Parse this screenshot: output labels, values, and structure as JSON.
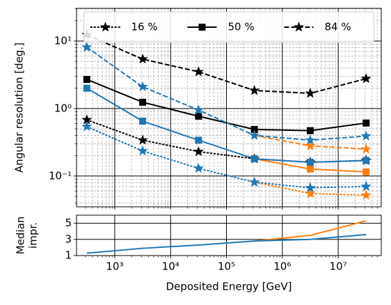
{
  "chart_data": [
    {
      "type": "line",
      "ylabel": "Angular resolution [deg.]",
      "xscale": "log",
      "yscale": "log",
      "xlim": [
        207,
        59000000
      ],
      "ylim": [
        0.035,
        30.5
      ],
      "xticks": [
        1000,
        10000,
        100000,
        1000000,
        10000000
      ],
      "yticks": [
        {
          "value": 0.1,
          "label": "10⁻¹"
        },
        {
          "value": 1,
          "label": "10⁰"
        },
        {
          "value": 10,
          "label": "10¹"
        }
      ],
      "grid": true,
      "minor_grid": true,
      "legend_loc": "upper center",
      "x": [
        316.2,
        3162,
        31623,
        316228,
        3162278,
        31622777
      ],
      "series": [
        {
          "name": "16 %",
          "color": "#000000",
          "linestyle": "dotted",
          "marker": "star",
          "values": [
            0.68,
            0.34,
            0.23,
            0.18,
            0.16,
            0.17
          ]
        },
        {
          "name": "50 %",
          "color": "#000000",
          "linestyle": "solid",
          "marker": "square",
          "values": [
            2.7,
            1.24,
            0.77,
            0.49,
            0.47,
            0.61
          ]
        },
        {
          "name": "84 %",
          "color": "#000000",
          "linestyle": "dashed",
          "marker": "star",
          "values": [
            12.4,
            5.4,
            3.5,
            1.85,
            1.68,
            2.77
          ]
        },
        {
          "color": "#ff7f0e",
          "linestyle": "dotted",
          "marker": "star",
          "values": [
            null,
            null,
            null,
            0.081,
            0.055,
            0.052
          ]
        },
        {
          "color": "#ff7f0e",
          "linestyle": "solid",
          "marker": "square",
          "values": [
            null,
            null,
            null,
            0.18,
            0.127,
            0.115
          ]
        },
        {
          "color": "#ff7f0e",
          "linestyle": "dashed",
          "marker": "star",
          "values": [
            null,
            null,
            null,
            0.4,
            0.28,
            0.25
          ]
        },
        {
          "color": "#1f77b4",
          "linestyle": "dotted",
          "marker": "star",
          "values": [
            0.54,
            0.235,
            0.13,
            0.081,
            0.067,
            0.07
          ]
        },
        {
          "color": "#1f77b4",
          "linestyle": "solid",
          "marker": "square",
          "values": [
            2.0,
            0.65,
            0.34,
            0.18,
            0.16,
            0.17
          ]
        },
        {
          "color": "#1f77b4",
          "linestyle": "dashed",
          "marker": "star",
          "values": [
            8.1,
            2.1,
            0.95,
            0.4,
            0.34,
            0.39
          ]
        }
      ]
    },
    {
      "type": "line",
      "ylabel": [
        "Median",
        "impr."
      ],
      "xlabel": "Deposited Energy [GeV]",
      "xscale": "log",
      "yscale": "linear",
      "xlim": [
        207,
        59000000
      ],
      "ylim": [
        1,
        6
      ],
      "xticks": [
        {
          "value": 1000,
          "label": "10³"
        },
        {
          "value": 10000,
          "label": "10⁴"
        },
        {
          "value": 100000,
          "label": "10⁵"
        },
        {
          "value": 1000000,
          "label": "10⁶"
        },
        {
          "value": 10000000,
          "label": "10⁷"
        }
      ],
      "yticks": [
        1,
        3,
        5
      ],
      "grid": true,
      "x": [
        316.2,
        3162,
        31623,
        316228,
        3162278,
        31622777
      ],
      "series": [
        {
          "color": "#ff7f0e",
          "linestyle": "solid",
          "values": [
            null,
            null,
            null,
            2.8,
            3.5,
            5.3
          ]
        },
        {
          "color": "#1f77b4",
          "linestyle": "solid",
          "values": [
            1.3,
            1.9,
            2.3,
            2.8,
            3.0,
            3.6
          ]
        }
      ]
    }
  ]
}
